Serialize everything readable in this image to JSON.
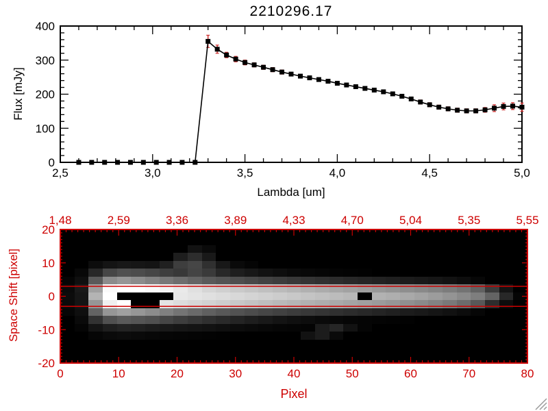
{
  "colors": {
    "axis": "#000000",
    "axis_red": "#cd0000",
    "error_bar": "#cc2a2a",
    "marker": "#000000",
    "background": "#ffffff",
    "image_background": "#000000"
  },
  "chart_data": [
    {
      "type": "line",
      "title": "2210296.17",
      "xlabel": "Lambda [um]",
      "ylabel": "Flux [mJy]",
      "xlim": [
        2.5,
        5.0
      ],
      "ylim": [
        0,
        400
      ],
      "x_ticks": [
        2.5,
        3.0,
        3.5,
        4.0,
        4.5,
        5.0
      ],
      "x_tick_labels": [
        "2,5",
        "3,0",
        "3,5",
        "4,0",
        "4,5",
        "5,0"
      ],
      "y_ticks": [
        0,
        100,
        200,
        300,
        400
      ],
      "y_tick_labels": [
        "0",
        "100",
        "200",
        "300",
        "400"
      ],
      "marker": "filled-square",
      "x": [
        2.6,
        2.67,
        2.74,
        2.81,
        2.88,
        2.95,
        3.02,
        3.09,
        3.16,
        3.23,
        3.3,
        3.35,
        3.4,
        3.45,
        3.5,
        3.55,
        3.6,
        3.65,
        3.7,
        3.75,
        3.8,
        3.85,
        3.9,
        3.95,
        4.0,
        4.05,
        4.1,
        4.15,
        4.2,
        4.25,
        4.3,
        4.35,
        4.4,
        4.45,
        4.5,
        4.55,
        4.6,
        4.65,
        4.7,
        4.75,
        4.8,
        4.85,
        4.9,
        4.95,
        5.0
      ],
      "y": [
        0,
        0,
        0,
        0,
        0,
        0,
        0,
        0,
        0,
        0,
        355,
        332,
        315,
        303,
        293,
        286,
        279,
        272,
        265,
        259,
        253,
        248,
        243,
        238,
        232,
        227,
        222,
        217,
        212,
        207,
        201,
        194,
        186,
        177,
        169,
        162,
        157,
        153,
        151,
        151,
        154,
        159,
        164,
        165,
        162
      ],
      "yerr": [
        3,
        3,
        3,
        3,
        3,
        3,
        3,
        3,
        3,
        3,
        18,
        12,
        8,
        8,
        7,
        6,
        6,
        6,
        6,
        5,
        5,
        5,
        5,
        5,
        5,
        5,
        5,
        5,
        5,
        5,
        5,
        5,
        5,
        6,
        6,
        6,
        6,
        6,
        6,
        6,
        7,
        10,
        10,
        10,
        12
      ]
    },
    {
      "type": "heatmap",
      "xlabel": "Pixel",
      "ylabel": "Space Shift [pixel]",
      "xlim": [
        0,
        80
      ],
      "ylim": [
        -20,
        20
      ],
      "x_ticks": [
        0,
        10,
        20,
        30,
        40,
        50,
        60,
        70,
        80
      ],
      "x_tick_labels": [
        "0",
        "10",
        "20",
        "30",
        "40",
        "50",
        "60",
        "70",
        "80"
      ],
      "y_ticks": [
        20,
        10,
        0,
        -10,
        -20
      ],
      "y_tick_labels": [
        "20",
        "10",
        "0",
        "-10",
        "-20"
      ],
      "top_axis": {
        "positions": [
          0,
          10,
          20,
          30,
          40,
          50,
          60,
          70,
          80
        ],
        "labels": [
          "1,48",
          "2,59",
          "3,36",
          "3,89",
          "4,33",
          "4,70",
          "5,04",
          "5,35",
          "5,55"
        ]
      },
      "red_lines": [
        3,
        -3
      ],
      "grid": [
        [
          0,
          0,
          0,
          0,
          0,
          0,
          0,
          0,
          0,
          0,
          0,
          0,
          0,
          0,
          0,
          0,
          0,
          0,
          0,
          0,
          0,
          0,
          0,
          0,
          0,
          0,
          0,
          0,
          0,
          0,
          0,
          0,
          0
        ],
        [
          0,
          0,
          0,
          0,
          0,
          0,
          0,
          0,
          0,
          0,
          0,
          0,
          0,
          0,
          0,
          0,
          0,
          0,
          0,
          0,
          0,
          0,
          0,
          0,
          0,
          0,
          0,
          0,
          0,
          0,
          0,
          0,
          0
        ],
        [
          0,
          0,
          0,
          0,
          0,
          0,
          0,
          0,
          0,
          18,
          10,
          0,
          0,
          0,
          0,
          0,
          0,
          0,
          0,
          0,
          0,
          0,
          0,
          0,
          0,
          0,
          0,
          0,
          0,
          0,
          0,
          0,
          0
        ],
        [
          0,
          0,
          0,
          0,
          0,
          0,
          0,
          0,
          30,
          45,
          25,
          0,
          0,
          0,
          0,
          0,
          0,
          0,
          0,
          0,
          0,
          0,
          0,
          0,
          0,
          0,
          0,
          0,
          0,
          0,
          0,
          0,
          0
        ],
        [
          0,
          0,
          12,
          20,
          24,
          22,
          20,
          32,
          62,
          70,
          48,
          24,
          10,
          5,
          0,
          0,
          0,
          0,
          0,
          0,
          0,
          0,
          0,
          0,
          0,
          0,
          0,
          0,
          0,
          0,
          0,
          0,
          0
        ],
        [
          0,
          8,
          40,
          70,
          80,
          76,
          70,
          62,
          56,
          68,
          58,
          40,
          30,
          24,
          18,
          14,
          10,
          8,
          6,
          4,
          3,
          2,
          0,
          0,
          0,
          0,
          0,
          0,
          0,
          0,
          0,
          0,
          0
        ],
        [
          5,
          15,
          90,
          140,
          150,
          140,
          130,
          120,
          110,
          100,
          90,
          84,
          78,
          72,
          66,
          61,
          56,
          52,
          48,
          44,
          40,
          37,
          34,
          31,
          28,
          25,
          22,
          18,
          13,
          7,
          0,
          0,
          0
        ],
        [
          10,
          25,
          160,
          250,
          255,
          255,
          250,
          244,
          234,
          224,
          214,
          208,
          202,
          197,
          192,
          187,
          182,
          177,
          172,
          167,
          162,
          157,
          152,
          147,
          142,
          137,
          131,
          124,
          115,
          98,
          60,
          20,
          0
        ],
        [
          12,
          22,
          180,
          255,
          0,
          0,
          0,
          0,
          232,
          228,
          224,
          220,
          216,
          212,
          208,
          204,
          200,
          196,
          192,
          188,
          184,
          0,
          178,
          174,
          169,
          163,
          156,
          148,
          138,
          126,
          100,
          40,
          5
        ],
        [
          10,
          20,
          150,
          240,
          255,
          0,
          0,
          228,
          220,
          215,
          210,
          205,
          200,
          195,
          190,
          185,
          181,
          177,
          173,
          169,
          164,
          160,
          155,
          150,
          144,
          138,
          130,
          121,
          108,
          88,
          45,
          12,
          0
        ],
        [
          6,
          15,
          100,
          150,
          160,
          150,
          140,
          128,
          116,
          106,
          96,
          88,
          82,
          76,
          70,
          65,
          60,
          56,
          52,
          48,
          44,
          40,
          36,
          32,
          28,
          25,
          21,
          17,
          12,
          6,
          0,
          0,
          0
        ],
        [
          0,
          10,
          50,
          80,
          90,
          85,
          80,
          70,
          62,
          55,
          48,
          42,
          36,
          30,
          25,
          20,
          16,
          13,
          10,
          8,
          6,
          5,
          4,
          3,
          2,
          0,
          0,
          0,
          0,
          0,
          0,
          0,
          0
        ],
        [
          0,
          5,
          20,
          30,
          35,
          32,
          28,
          25,
          22,
          20,
          18,
          15,
          12,
          10,
          8,
          6,
          5,
          4,
          28,
          38,
          18,
          5,
          0,
          0,
          0,
          0,
          0,
          0,
          0,
          0,
          0,
          0,
          0
        ],
        [
          0,
          0,
          6,
          10,
          12,
          10,
          8,
          6,
          5,
          4,
          3,
          2,
          0,
          0,
          0,
          0,
          0,
          18,
          28,
          10,
          0,
          0,
          0,
          0,
          0,
          0,
          0,
          0,
          0,
          0,
          0,
          0,
          0
        ],
        [
          0,
          0,
          0,
          0,
          0,
          0,
          0,
          0,
          0,
          0,
          0,
          0,
          0,
          0,
          0,
          0,
          0,
          0,
          0,
          0,
          0,
          0,
          0,
          0,
          0,
          0,
          0,
          0,
          0,
          0,
          0,
          0,
          0
        ],
        [
          0,
          0,
          0,
          0,
          0,
          0,
          0,
          0,
          0,
          0,
          0,
          0,
          0,
          0,
          0,
          0,
          0,
          0,
          0,
          0,
          0,
          0,
          0,
          0,
          0,
          0,
          0,
          0,
          0,
          0,
          0,
          0,
          0
        ],
        [
          0,
          0,
          0,
          0,
          0,
          0,
          0,
          0,
          0,
          0,
          0,
          0,
          0,
          0,
          0,
          0,
          0,
          0,
          0,
          0,
          0,
          0,
          0,
          0,
          0,
          0,
          0,
          0,
          0,
          0,
          0,
          0,
          0
        ]
      ]
    }
  ]
}
